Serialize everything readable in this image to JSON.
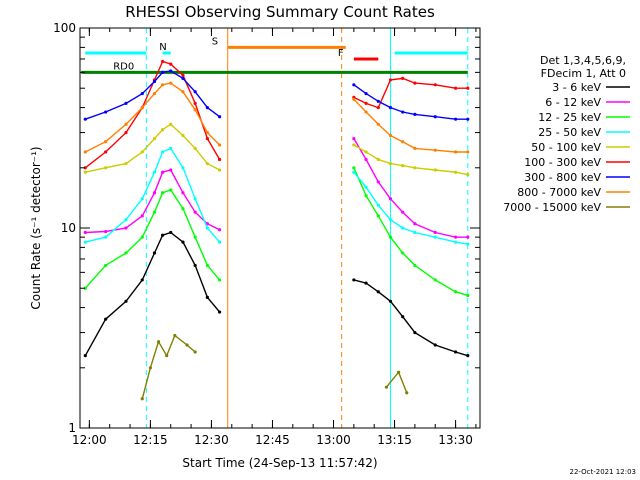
{
  "chart_data": {
    "type": "line",
    "title": "RHESSI Observing Summary Count Rates",
    "xlabel": "Start Time (24-Sep-13 11:57:42)",
    "ylabel": "Count Rate (s⁻¹ detector⁻¹)",
    "x_range": [
      "11:57:42",
      "13:36:00"
    ],
    "yscale": "log",
    "ylim": [
      1,
      100
    ],
    "x_ticks": [
      "12:00",
      "12:15",
      "12:30",
      "12:45",
      "13:00",
      "13:15",
      "13:30"
    ],
    "y_ticks": [
      {
        "value": 1,
        "label": "1"
      },
      {
        "value": 10,
        "label": "10"
      },
      {
        "value": 100,
        "label": "100"
      }
    ],
    "grid": false,
    "legend_position": "right",
    "legend_header": [
      "Det 1,3,4,5,6,9,",
      "FDecim 1, Att 0"
    ],
    "series": [
      {
        "name": "3 - 6 keV",
        "color": "#000000",
        "x": [
          "11:59",
          "12:04",
          "12:09",
          "12:13",
          "12:16",
          "12:18",
          "12:20",
          "12:23",
          "12:26",
          "12:29",
          "12:32",
          "13:05",
          "13:08",
          "13:11",
          "13:14",
          "13:17",
          "13:20",
          "13:25",
          "13:30",
          "13:33"
        ],
        "y": [
          2.3,
          3.5,
          4.3,
          5.5,
          7.5,
          9.2,
          9.5,
          8.5,
          6.5,
          4.5,
          3.8,
          5.5,
          5.3,
          4.8,
          4.3,
          3.6,
          3.0,
          2.6,
          2.4,
          2.3
        ]
      },
      {
        "name": "6 - 12 keV",
        "color": "#ff00ff",
        "x": [
          "11:59",
          "12:04",
          "12:09",
          "12:13",
          "12:16",
          "12:18",
          "12:20",
          "12:23",
          "12:26",
          "12:29",
          "12:32",
          "13:05",
          "13:08",
          "13:11",
          "13:14",
          "13:17",
          "13:20",
          "13:25",
          "13:30",
          "13:33"
        ],
        "y": [
          9.5,
          9.6,
          10,
          11.5,
          15,
          19,
          19.5,
          15,
          12,
          10.5,
          9.8,
          28,
          22,
          17,
          14,
          12,
          10.5,
          9.5,
          9,
          9
        ]
      },
      {
        "name": "12 - 25 keV",
        "color": "#00ff00",
        "x": [
          "11:59",
          "12:04",
          "12:09",
          "12:13",
          "12:16",
          "12:18",
          "12:20",
          "12:23",
          "12:26",
          "12:29",
          "12:32",
          "13:05",
          "13:08",
          "13:11",
          "13:14",
          "13:17",
          "13:20",
          "13:25",
          "13:30",
          "13:33"
        ],
        "y": [
          5,
          6.5,
          7.5,
          9,
          12,
          15,
          15.5,
          12.5,
          9,
          6.5,
          5.5,
          20,
          14.5,
          11.5,
          9,
          7.5,
          6.5,
          5.5,
          4.8,
          4.6
        ]
      },
      {
        "name": "25 - 50 keV",
        "color": "#00ffff",
        "x": [
          "11:59",
          "12:04",
          "12:09",
          "12:13",
          "12:16",
          "12:18",
          "12:20",
          "12:23",
          "12:26",
          "12:29",
          "12:32",
          "13:05",
          "13:08",
          "13:11",
          "13:14",
          "13:17",
          "13:20",
          "13:25",
          "13:30",
          "13:33"
        ],
        "y": [
          8.5,
          9,
          11,
          14,
          19,
          24,
          25,
          20,
          14,
          10,
          8.5,
          19,
          16,
          13,
          11,
          10,
          9.5,
          9,
          8.5,
          8.3
        ]
      },
      {
        "name": "50 - 100 keV",
        "color": "#cccc00",
        "x": [
          "11:59",
          "12:04",
          "12:09",
          "12:13",
          "12:16",
          "12:18",
          "12:20",
          "12:23",
          "12:26",
          "12:29",
          "12:32",
          "13:05",
          "13:08",
          "13:11",
          "13:14",
          "13:17",
          "13:20",
          "13:25",
          "13:30",
          "13:33"
        ],
        "y": [
          19,
          20,
          21,
          24,
          28,
          31,
          33,
          29,
          25,
          21,
          19.5,
          26,
          24,
          22,
          21,
          20.5,
          20,
          19.5,
          19,
          18.5
        ]
      },
      {
        "name": "100 - 300 keV",
        "color": "#ff0000",
        "x": [
          "11:59",
          "12:04",
          "12:09",
          "12:13",
          "12:16",
          "12:18",
          "12:20",
          "12:23",
          "12:26",
          "12:29",
          "12:32",
          "13:05",
          "13:08",
          "13:11",
          "13:14",
          "13:17",
          "13:20",
          "13:25",
          "13:30",
          "13:33"
        ],
        "y": [
          20,
          24,
          30,
          40,
          55,
          68,
          66,
          58,
          42,
          28,
          22,
          45,
          42,
          40,
          55,
          56,
          53,
          52,
          50,
          50
        ]
      },
      {
        "name": "300 - 800 keV",
        "color": "#0000ff",
        "x": [
          "11:59",
          "12:04",
          "12:09",
          "12:13",
          "12:16",
          "12:18",
          "12:20",
          "12:23",
          "12:26",
          "12:29",
          "12:32",
          "13:05",
          "13:08",
          "13:11",
          "13:14",
          "13:17",
          "13:20",
          "13:25",
          "13:30",
          "13:33"
        ],
        "y": [
          35,
          38,
          42,
          47,
          54,
          60,
          61,
          56,
          48,
          40,
          36,
          52,
          47,
          43,
          40,
          38,
          37,
          36,
          35,
          35
        ]
      },
      {
        "name": "800 - 7000 keV",
        "color": "#ff8000",
        "x": [
          "11:59",
          "12:04",
          "12:09",
          "12:13",
          "12:16",
          "12:18",
          "12:20",
          "12:23",
          "12:26",
          "12:29",
          "12:32",
          "13:05",
          "13:08",
          "13:11",
          "13:14",
          "13:17",
          "13:20",
          "13:25",
          "13:30",
          "13:33"
        ],
        "y": [
          24,
          27,
          33,
          40,
          47,
          52,
          53,
          48,
          39,
          30,
          26,
          44,
          38,
          33,
          29,
          27,
          25,
          24.5,
          24,
          24
        ]
      },
      {
        "name": "7000 - 15000 keV",
        "color": "#808000",
        "x": [
          "12:13",
          "12:15",
          "12:17",
          "12:19",
          "12:21",
          "12:24",
          "12:26",
          "13:13",
          "13:16",
          "13:18"
        ],
        "y": [
          1.4,
          2.0,
          2.7,
          2.3,
          2.9,
          2.6,
          2.4,
          1.6,
          1.9,
          1.5
        ]
      }
    ],
    "flag_bars": [
      {
        "label": "N",
        "color": "#00ffff",
        "segments": [
          [
            "11:59",
            "12:14"
          ],
          [
            "12:18",
            "12:20"
          ],
          [
            "13:15",
            "13:33"
          ]
        ],
        "level": 75
      },
      {
        "label": "RD0",
        "color": "#008000",
        "segments": [
          [
            "11:58",
            "13:33"
          ]
        ],
        "level": 60
      },
      {
        "label": "S",
        "color": "#ff8000",
        "segments": [
          [
            "12:34",
            "13:03"
          ]
        ],
        "level": 80
      },
      {
        "label": "F",
        "color": "#ff0000",
        "segments": [
          [
            "13:05",
            "13:11"
          ]
        ],
        "level": 70
      }
    ],
    "vertical_lines": [
      {
        "time": "11:57:42",
        "color": "#00ffff",
        "style": "solid"
      },
      {
        "time": "12:14",
        "color": "#00ffff",
        "style": "dashed"
      },
      {
        "time": "12:34",
        "color": "#ff8000",
        "style": "solid"
      },
      {
        "time": "13:02",
        "color": "#ff8000",
        "style": "dashed"
      },
      {
        "time": "13:14",
        "color": "#00ffff",
        "style": "solid"
      },
      {
        "time": "13:33",
        "color": "#00ffff",
        "style": "dashed"
      }
    ],
    "gaps": [
      [
        "12:34",
        "13:04"
      ]
    ]
  },
  "timestamp": "22-Oct-2021 12:03"
}
